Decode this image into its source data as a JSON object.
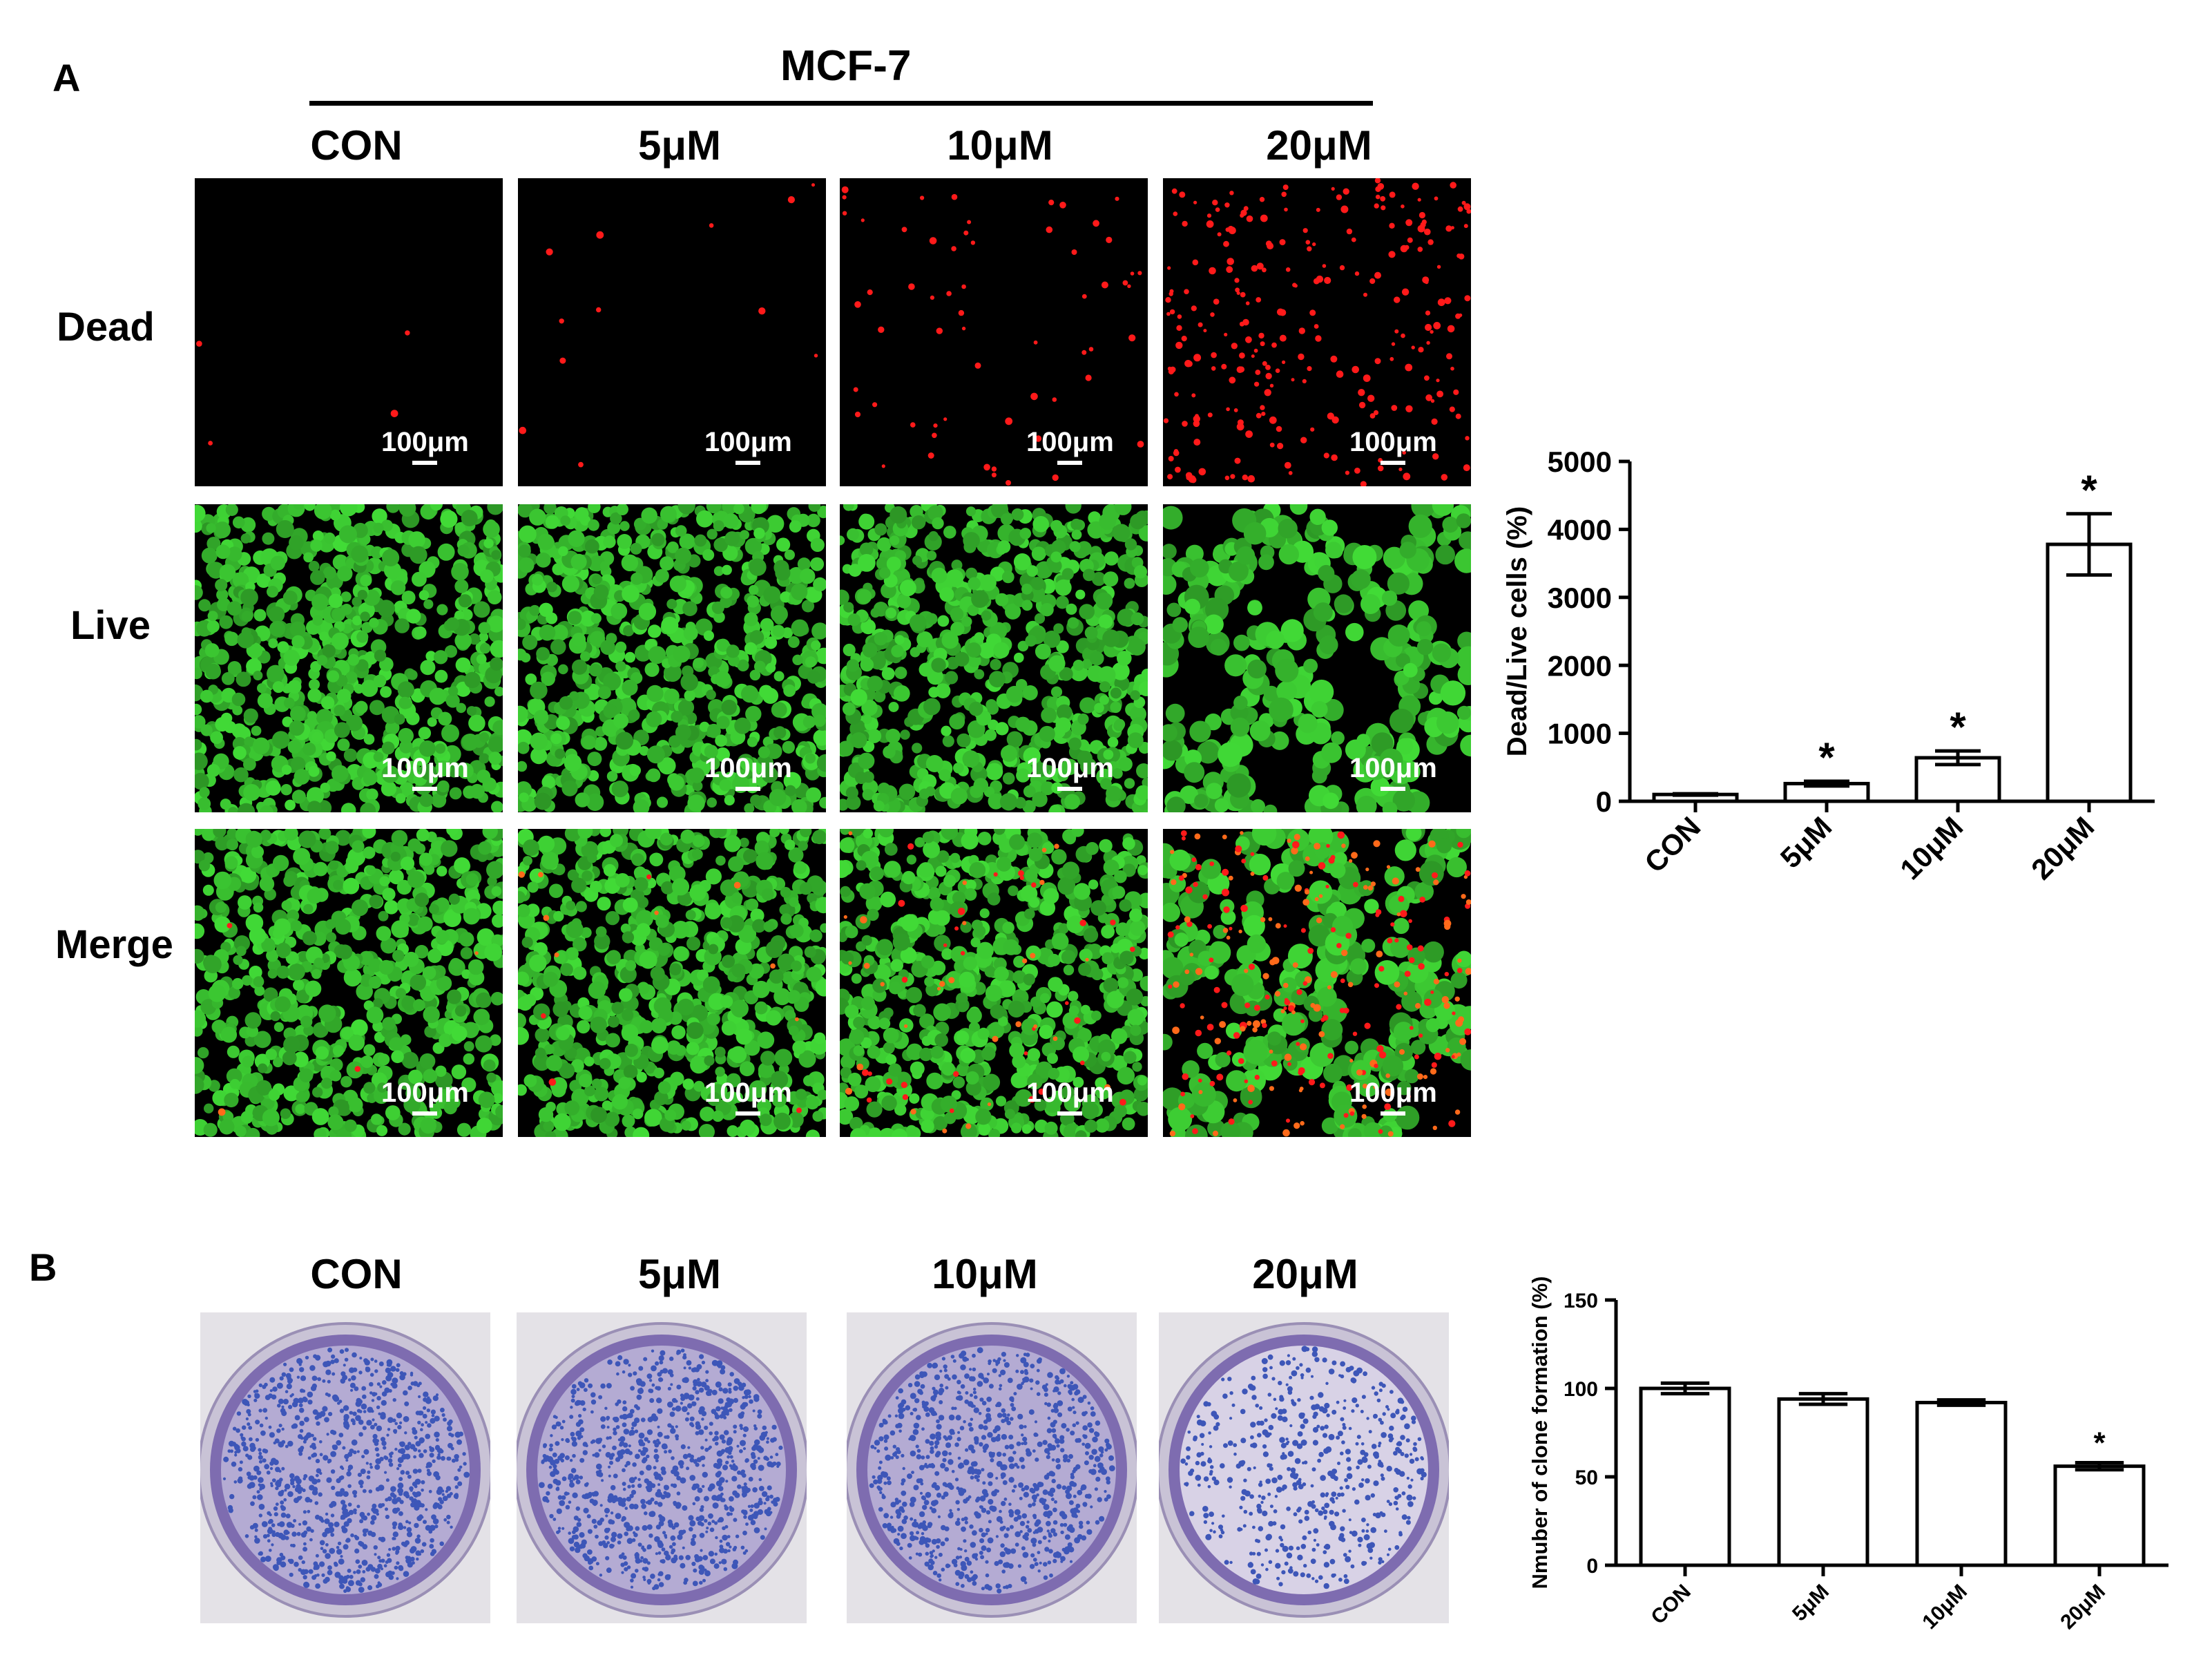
{
  "figure": {
    "panel_a_letter": "A",
    "panel_b_letter": "B",
    "cell_line": "MCF-7",
    "groups": [
      "CON",
      "5μM",
      "10μM",
      "20μM"
    ],
    "row_labels": [
      "Dead",
      "Live",
      "Merge"
    ],
    "scale_label": "100μm"
  },
  "chart_data": [
    {
      "type": "bar",
      "categories": [
        "CON",
        "5μM",
        "10μM",
        "20μM"
      ],
      "values": [
        100,
        260,
        640,
        3780
      ],
      "errors": [
        10,
        35,
        100,
        450
      ],
      "significance": [
        "",
        "*",
        "*",
        "*"
      ],
      "title": "",
      "xlabel": "",
      "ylabel": "Dead/Live cells (%)",
      "ylim": [
        0,
        5000
      ],
      "yticks": [
        0,
        1000,
        2000,
        3000,
        4000,
        5000
      ],
      "grid": false
    },
    {
      "type": "bar",
      "categories": [
        "CON",
        "5μM",
        "10μM",
        "20μM"
      ],
      "values": [
        100,
        94,
        92,
        56
      ],
      "errors": [
        3,
        3,
        1.5,
        2
      ],
      "significance": [
        "",
        "",
        "",
        "*"
      ],
      "title": "",
      "xlabel": "",
      "ylabel": "Nmuber of clone formation (%)",
      "ylim": [
        0,
        150
      ],
      "yticks": [
        0,
        50,
        100,
        150
      ],
      "grid": false
    }
  ],
  "colors": {
    "dead_stain": "#ff1a1a",
    "live_stain": "#3cc43c",
    "crystal_violet": "#3d56b8",
    "bar_fill": "#ffffff",
    "axis": "#000000"
  }
}
